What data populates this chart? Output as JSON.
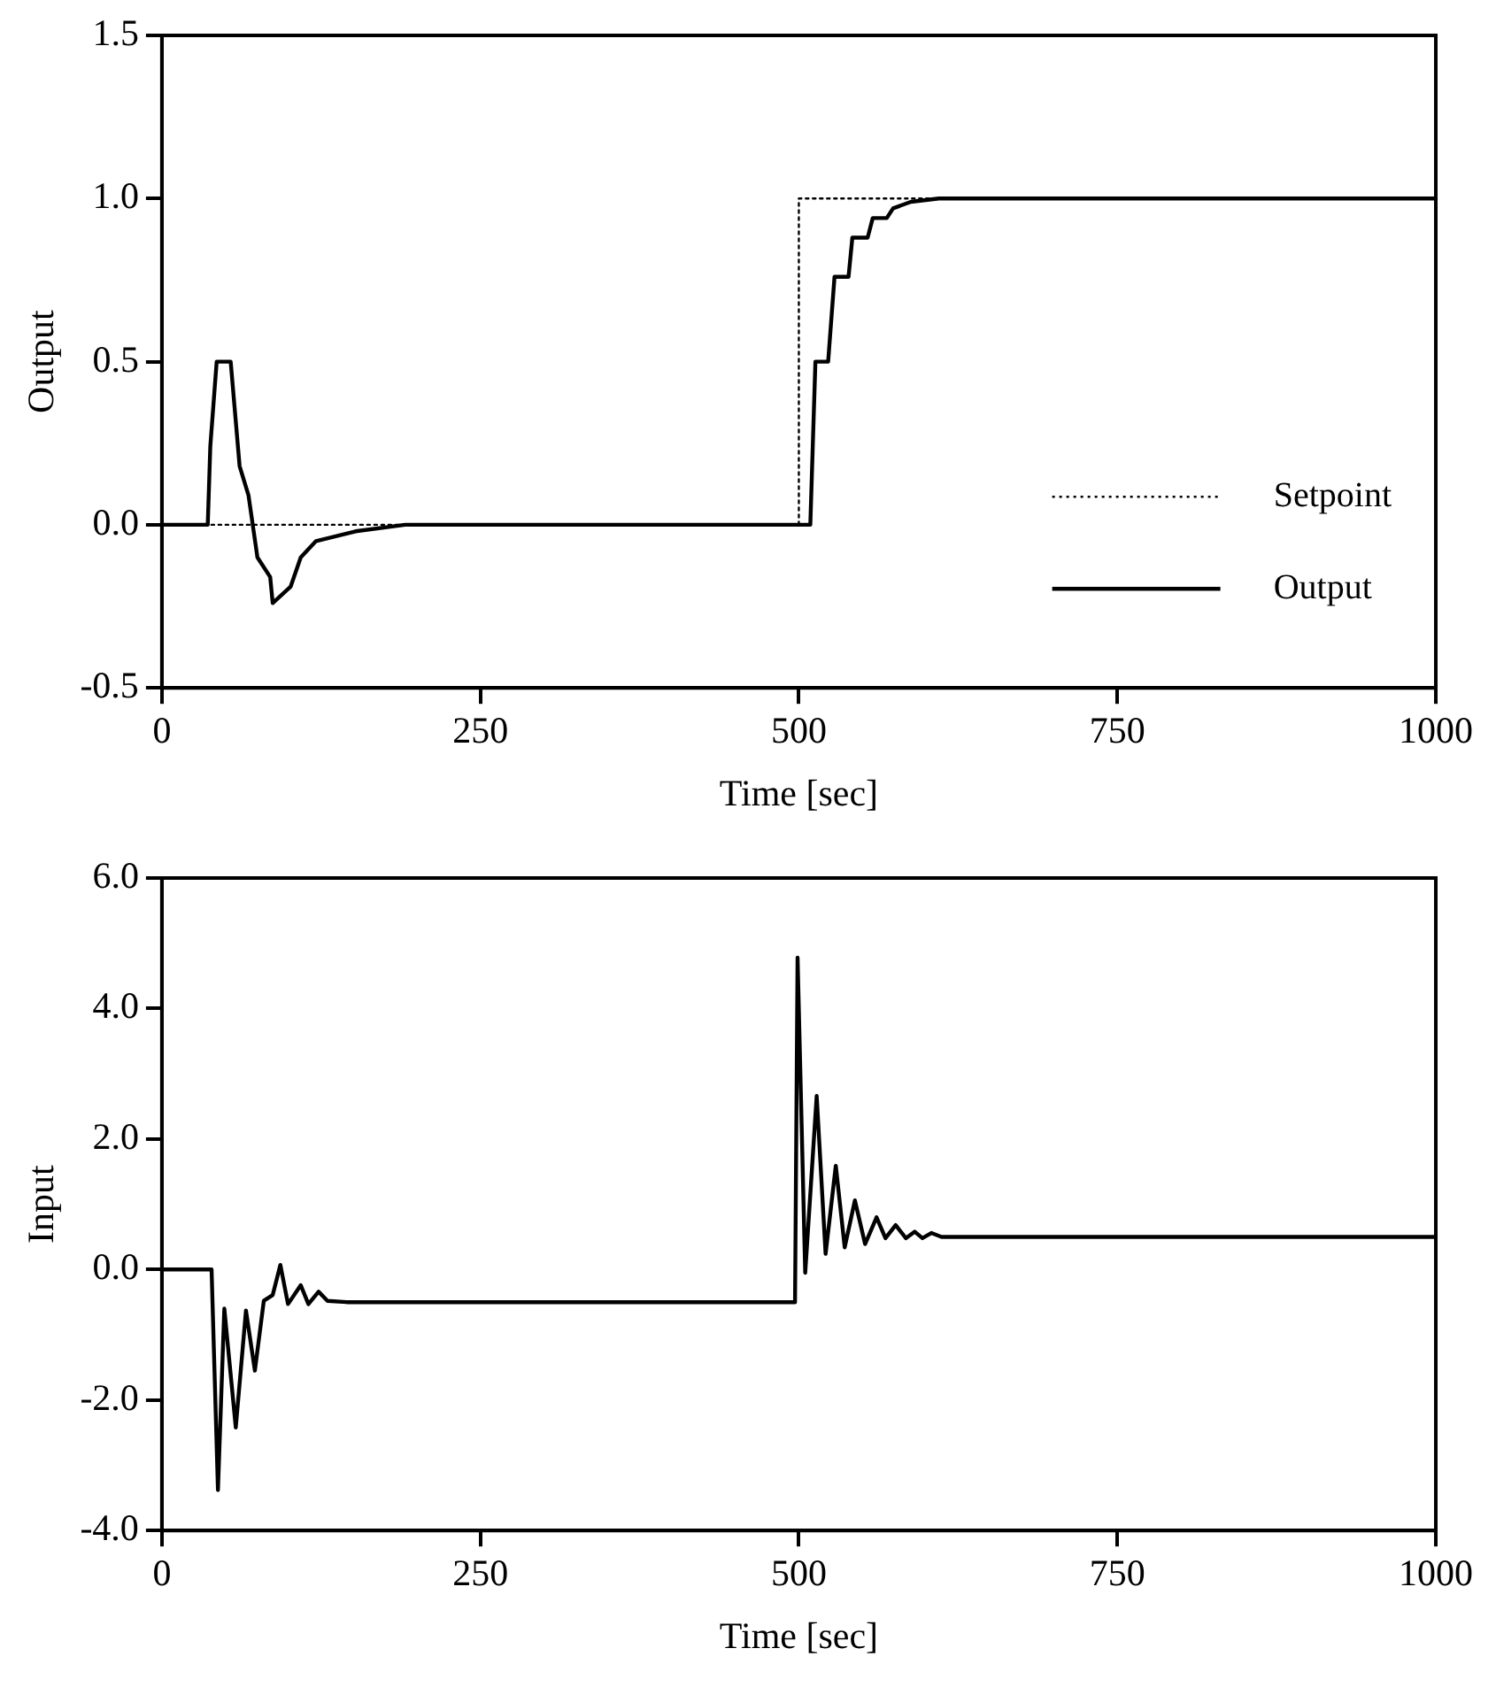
{
  "chart_data": [
    {
      "type": "line",
      "xlabel": "Time [sec]",
      "ylabel": "Output",
      "xlim": [
        0,
        1000
      ],
      "xticks": [
        0,
        250,
        500,
        750,
        1000
      ],
      "ylim": [
        -0.5,
        1.5
      ],
      "yticks": [
        {
          "value": -0.5,
          "label": "-0.5"
        },
        {
          "value": 0,
          "label": "0.0"
        },
        {
          "value": 0.5,
          "label": "0.5"
        },
        {
          "value": 1,
          "label": "1.0"
        },
        {
          "value": 1.5,
          "label": "1.5"
        }
      ],
      "legend": "bottom right",
      "grid": false,
      "series": [
        {
          "name": "Setpoint",
          "color": "#000000",
          "line_style": "dotted",
          "x": [
            0,
            500,
            500,
            1000
          ],
          "values": [
            0,
            0,
            1,
            1
          ]
        },
        {
          "name": "Output",
          "color": "#000000",
          "line_style": "solid",
          "x": [
            0,
            36,
            38,
            43,
            54,
            61,
            68,
            75,
            85,
            87,
            101,
            109,
            121,
            152,
            191,
            500,
            509,
            513,
            523,
            528,
            539,
            542,
            554,
            558,
            569,
            574,
            588,
            610,
            1000
          ],
          "values": [
            0,
            0,
            0.24,
            0.5,
            0.5,
            0.18,
            0.09,
            -0.1,
            -0.16,
            -0.24,
            -0.19,
            -0.1,
            -0.05,
            -0.02,
            0,
            0,
            0,
            0.5,
            0.5,
            0.76,
            0.76,
            0.88,
            0.88,
            0.94,
            0.94,
            0.97,
            0.99,
            1,
            1
          ]
        }
      ]
    },
    {
      "type": "line",
      "xlabel": "Time [sec]",
      "ylabel": "Input",
      "xlim": [
        0,
        1000
      ],
      "xticks": [
        0,
        250,
        500,
        750,
        1000
      ],
      "ylim": [
        -4,
        6
      ],
      "yticks": [
        {
          "value": -4,
          "label": "-4.0"
        },
        {
          "value": -2,
          "label": "-2.0"
        },
        {
          "value": 0,
          "label": "0.0"
        },
        {
          "value": 2,
          "label": "2.0"
        },
        {
          "value": 4,
          "label": "4.0"
        },
        {
          "value": 6,
          "label": "6.0"
        }
      ],
      "grid": false,
      "series": [
        {
          "color": "#000000",
          "line_style": "solid",
          "x": [
            0,
            39,
            44,
            49,
            58,
            66,
            73,
            80,
            87,
            93,
            99,
            109,
            115,
            123,
            130,
            145,
            497,
            499,
            505,
            514,
            521,
            529,
            536,
            544,
            552,
            561,
            568,
            576,
            584,
            591,
            597,
            604,
            612,
            1000
          ],
          "values": [
            0,
            0,
            -3.38,
            -0.6,
            -2.42,
            -0.63,
            -1.55,
            -0.48,
            -0.39,
            0.07,
            -0.53,
            -0.24,
            -0.53,
            -0.34,
            -0.48,
            -0.5,
            -0.5,
            4.78,
            -0.05,
            2.66,
            0.24,
            1.59,
            0.34,
            1.06,
            0.39,
            0.8,
            0.48,
            0.68,
            0.48,
            0.58,
            0.48,
            0.56,
            0.5,
            0.5
          ]
        }
      ]
    }
  ]
}
